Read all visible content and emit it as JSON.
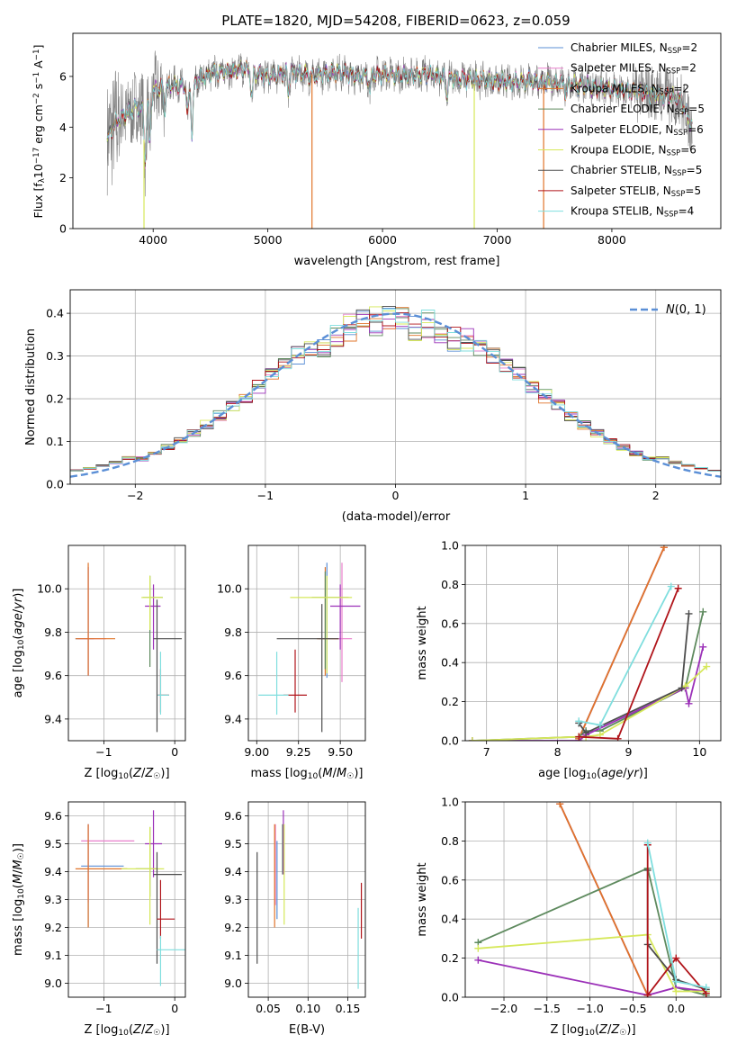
{
  "figure": {
    "title": "PLATE=1820, MJD=54208, FIBERID=0623, z=0.059"
  },
  "series_colors": {
    "Chabrier MILES": "#5b8fd6",
    "Salpeter MILES": "#e87ecb",
    "Kroupa MILES": "#e0742a",
    "Chabrier ELODIE": "#5e8a5e",
    "Salpeter ELODIE": "#9b30b8",
    "Kroupa ELODIE": "#d6e85a",
    "Chabrier STELIB": "#4d4d4d",
    "Salpeter STELIB": "#b0141a",
    "Kroupa STELIB": "#7fdede"
  },
  "chart_data": [
    {
      "id": "spectrum",
      "type": "line",
      "title": "PLATE=1820, MJD=54208, FIBERID=0623, z=0.059",
      "xlabel": "wavelength [Angstrom, rest frame]",
      "ylabel": "Flux [f_λ10^-17 erg cm^-2 s^-1 A^-1]",
      "xlim": [
        3300,
        8950
      ],
      "ylim": [
        0,
        7.7
      ],
      "xticks": [
        4000,
        5000,
        6000,
        7000,
        8000
      ],
      "yticks": [
        0,
        2,
        4,
        6
      ],
      "grid": false,
      "legend_position": "right",
      "legend": [
        {
          "name": "Chabrier MILES",
          "nssp": "2"
        },
        {
          "name": "Salpeter MILES",
          "nssp": "2"
        },
        {
          "name": "Kroupa MILES",
          "nssp": "2"
        },
        {
          "name": "Chabrier ELODIE",
          "nssp": "5"
        },
        {
          "name": "Salpeter ELODIE",
          "nssp": "6"
        },
        {
          "name": "Kroupa ELODIE",
          "nssp": "6"
        },
        {
          "name": "Chabrier STELIB",
          "nssp": "5"
        },
        {
          "name": "Salpeter STELIB",
          "nssp": "5"
        },
        {
          "name": "Kroupa STELIB",
          "nssp": "4"
        }
      ],
      "data_color": "#808080",
      "continuum": {
        "x": [
          3600,
          3650,
          3700,
          3750,
          3800,
          3850,
          3900,
          3950,
          4000,
          4100,
          4200,
          4300,
          4400,
          4500,
          4600,
          4700,
          4800,
          4900,
          5000,
          5200,
          5400,
          5600,
          5800,
          6000,
          6200,
          6400,
          6600,
          6800,
          7000,
          7200,
          7400,
          7600,
          7800,
          8000,
          8200,
          8400,
          8600,
          8700
        ],
        "y": [
          3.5,
          4.0,
          4.3,
          4.5,
          4.6,
          4.8,
          4.7,
          5.0,
          5.4,
          5.6,
          5.7,
          5.6,
          5.9,
          6.1,
          6.2,
          6.2,
          6.3,
          6.1,
          6.0,
          6.2,
          6.0,
          6.2,
          6.0,
          6.1,
          6.0,
          6.1,
          5.9,
          5.9,
          5.8,
          5.8,
          5.8,
          5.7,
          5.6,
          5.5,
          5.4,
          5.3,
          5.1,
          4.0
        ]
      },
      "dips": [
        {
          "x": 3930,
          "depth": 2.3
        },
        {
          "x": 3970,
          "depth": 1.8
        },
        {
          "x": 4100,
          "depth": 0.9
        },
        {
          "x": 4300,
          "depth": 1.2
        },
        {
          "x": 4340,
          "depth": 2.0
        },
        {
          "x": 4860,
          "depth": 1.0
        },
        {
          "x": 5180,
          "depth": 0.8
        },
        {
          "x": 5890,
          "depth": 0.6
        },
        {
          "x": 6560,
          "depth": 0.7
        },
        {
          "x": 7600,
          "depth": 0.4
        }
      ],
      "spikes": [
        {
          "x": 3920,
          "to": 0.0,
          "series": "Kroupa ELODIE"
        },
        {
          "x": 5385,
          "to": 0.0,
          "series": "Kroupa MILES"
        },
        {
          "x": 6800,
          "to": 0.0,
          "series": "Kroupa ELODIE"
        },
        {
          "x": 7405,
          "to": 0.0,
          "series": "Kroupa MILES"
        }
      ]
    },
    {
      "id": "residuals",
      "type": "histogram",
      "xlabel": "(data-model)/error",
      "ylabel": "Normed distribution",
      "xlim": [
        -2.5,
        2.5
      ],
      "ylim": [
        0,
        0.455
      ],
      "xticks": [
        -2,
        -1,
        0,
        1,
        2
      ],
      "yticks": [
        0.0,
        0.1,
        0.2,
        0.3,
        0.4
      ],
      "grid": true,
      "legend_position": "top-right",
      "legend_label": "N(0,1)",
      "bin_width": 0.1,
      "bin_start": -2.5,
      "reference_curve": "normal(0,1)",
      "reference_color": "#5b8fd6"
    },
    {
      "id": "age_vs_Z",
      "type": "errorbar",
      "xlabel": "Z [log10(Z/Z☉)]",
      "ylabel": "age [log10(age/yr)]",
      "xlim": [
        -1.5,
        0.15
      ],
      "ylim": [
        9.3,
        10.2
      ],
      "xticks": [
        -1,
        0
      ],
      "yticks": [
        9.4,
        9.6,
        9.8,
        10.0
      ],
      "grid": true,
      "points": [
        {
          "series": "Chabrier MILES",
          "x": -1.22,
          "xerr": [
            0.18,
            0.08
          ],
          "y": 9.77,
          "yerr": [
            0.17,
            0.33
          ]
        },
        {
          "series": "Salpeter MILES",
          "x": -1.22,
          "xerr": [
            0.15,
            0.25
          ],
          "y": 9.77,
          "yerr": [
            0.17,
            0.33
          ]
        },
        {
          "series": "Kroupa MILES",
          "x": -1.22,
          "xerr": [
            0.18,
            0.38
          ],
          "y": 9.77,
          "yerr": [
            0.17,
            0.35
          ]
        },
        {
          "series": "Chabrier ELODIE",
          "x": -0.35,
          "xerr": [
            0.1,
            0.18
          ],
          "y": 9.96,
          "yerr": [
            0.32,
            0.1
          ]
        },
        {
          "series": "Salpeter ELODIE",
          "x": -0.3,
          "xerr": [
            0.12,
            0.1
          ],
          "y": 9.92,
          "yerr": [
            0.2,
            0.1
          ]
        },
        {
          "series": "Kroupa ELODIE",
          "x": -0.35,
          "xerr": [
            0.12,
            0.18
          ],
          "y": 9.96,
          "yerr": [
            0.15,
            0.1
          ]
        },
        {
          "series": "Chabrier STELIB",
          "x": -0.25,
          "xerr": [
            0.05,
            0.35
          ],
          "y": 9.77,
          "yerr": [
            0.43,
            0.18
          ]
        },
        {
          "series": "Salpeter STELIB",
          "x": -0.2,
          "xerr": [
            0.04,
            0.12
          ],
          "y": 9.51,
          "yerr": [
            0.08,
            0.12
          ]
        },
        {
          "series": "Kroupa STELIB",
          "x": -0.2,
          "xerr": [
            0.04,
            0.12
          ],
          "y": 9.51,
          "yerr": [
            0.09,
            0.2
          ]
        }
      ]
    },
    {
      "id": "age_vs_mass",
      "type": "errorbar",
      "xlabel": "mass [log10(M/M☉)]",
      "ylabel": "",
      "xlim": [
        8.95,
        9.65
      ],
      "ylim": [
        9.3,
        10.2
      ],
      "xticks": [
        9.0,
        9.25,
        9.5
      ],
      "xtick_labels": [
        "9.00",
        "9.25",
        "9.50"
      ],
      "yticks": [
        9.4,
        9.6,
        9.8,
        10.0
      ],
      "grid": true,
      "points": [
        {
          "series": "Chabrier MILES",
          "x": 9.42,
          "xerr": [
            0.05,
            0.08
          ],
          "y": 9.77,
          "yerr": [
            0.18,
            0.35
          ]
        },
        {
          "series": "Salpeter MILES",
          "x": 9.51,
          "xerr": [
            0.06,
            0.06
          ],
          "y": 9.77,
          "yerr": [
            0.2,
            0.35
          ]
        },
        {
          "series": "Kroupa MILES",
          "x": 9.41,
          "xerr": [
            0.05,
            0.08
          ],
          "y": 9.77,
          "yerr": [
            0.17,
            0.33
          ]
        },
        {
          "series": "Chabrier ELODIE",
          "x": 9.41,
          "xerr": [
            0.08,
            0.14
          ],
          "y": 9.96,
          "yerr": [
            0.33,
            0.12
          ]
        },
        {
          "series": "Salpeter ELODIE",
          "x": 9.5,
          "xerr": [
            0.06,
            0.12
          ],
          "y": 9.92,
          "yerr": [
            0.2,
            0.1
          ]
        },
        {
          "series": "Kroupa ELODIE",
          "x": 9.42,
          "xerr": [
            0.22,
            0.15
          ],
          "y": 9.96,
          "yerr": [
            0.35,
            0.1
          ]
        },
        {
          "series": "Chabrier STELIB",
          "x": 9.39,
          "xerr": [
            0.27,
            0.1
          ],
          "y": 9.77,
          "yerr": [
            0.43,
            0.16
          ]
        },
        {
          "series": "Salpeter STELIB",
          "x": 9.23,
          "xerr": [
            0.07,
            0.07
          ],
          "y": 9.51,
          "yerr": [
            0.08,
            0.21
          ]
        },
        {
          "series": "Kroupa STELIB",
          "x": 9.12,
          "xerr": [
            0.11,
            0.07
          ],
          "y": 9.51,
          "yerr": [
            0.09,
            0.2
          ]
        }
      ]
    },
    {
      "id": "mass_weight_vs_age",
      "type": "line",
      "xlabel": "age [log10(age/yr)]",
      "ylabel": "mass weight",
      "xlim": [
        6.7,
        10.3
      ],
      "ylim": [
        0,
        1
      ],
      "xticks": [
        7,
        8,
        9,
        10
      ],
      "yticks": [
        0.0,
        0.2,
        0.4,
        0.6,
        0.8,
        1.0
      ],
      "grid": true,
      "series": [
        {
          "name": "Chabrier MILES",
          "x": [
            8.3,
            9.5
          ],
          "y": [
            0.01,
            0.99
          ]
        },
        {
          "name": "Salpeter MILES",
          "x": [
            8.3,
            9.5
          ],
          "y": [
            0.01,
            0.99
          ]
        },
        {
          "name": "Kroupa MILES",
          "x": [
            8.3,
            9.5
          ],
          "y": [
            0.01,
            0.99
          ]
        },
        {
          "name": "Chabrier ELODIE",
          "x": [
            6.8,
            8.3,
            8.4,
            8.6,
            9.8,
            10.05
          ],
          "y": [
            0.0,
            0.02,
            0.05,
            0.05,
            0.27,
            0.66
          ]
        },
        {
          "name": "Salpeter ELODIE",
          "x": [
            6.8,
            8.3,
            8.4,
            9.8,
            9.85,
            10.05
          ],
          "y": [
            0.0,
            0.0,
            0.03,
            0.27,
            0.19,
            0.48
          ]
        },
        {
          "name": "Kroupa ELODIE",
          "x": [
            6.8,
            8.3,
            8.4,
            8.6,
            9.8,
            10.1
          ],
          "y": [
            0.0,
            0.02,
            0.02,
            0.03,
            0.28,
            0.38
          ]
        },
        {
          "name": "Chabrier STELIB",
          "x": [
            8.3,
            8.4,
            9.75,
            9.85
          ],
          "y": [
            0.09,
            0.04,
            0.27,
            0.65
          ]
        },
        {
          "name": "Salpeter STELIB",
          "x": [
            8.3,
            8.85,
            9.7
          ],
          "y": [
            0.02,
            0.01,
            0.78
          ]
        },
        {
          "name": "Kroupa STELIB",
          "x": [
            8.3,
            8.6,
            9.6
          ],
          "y": [
            0.1,
            0.08,
            0.79
          ]
        }
      ]
    },
    {
      "id": "mass_vs_Z",
      "type": "errorbar",
      "xlabel": "Z [log10(Z/Z☉)]",
      "ylabel": "mass [log10(M/M☉)]",
      "xlim": [
        -1.5,
        0.15
      ],
      "ylim": [
        8.95,
        9.65
      ],
      "xticks": [
        -1,
        0
      ],
      "yticks": [
        9.0,
        9.1,
        9.2,
        9.3,
        9.4,
        9.5,
        9.6
      ],
      "grid": true,
      "points": [
        {
          "series": "Chabrier MILES",
          "x": -1.22,
          "xerr": [
            0.1,
            0.5
          ],
          "y": 9.42,
          "yerr": [
            0.22,
            0.15
          ]
        },
        {
          "series": "Salpeter MILES",
          "x": -1.22,
          "xerr": [
            0.1,
            0.65
          ],
          "y": 9.51,
          "yerr": [
            0.22,
            0.06
          ]
        },
        {
          "series": "Kroupa MILES",
          "x": -1.22,
          "xerr": [
            0.18,
            0.55
          ],
          "y": 9.41,
          "yerr": [
            0.21,
            0.16
          ]
        },
        {
          "series": "Chabrier ELODIE",
          "x": -0.35,
          "xerr": [
            0.2,
            0.1
          ],
          "y": 9.41,
          "yerr": [
            0.1,
            0.15
          ]
        },
        {
          "series": "Salpeter ELODIE",
          "x": -0.3,
          "xerr": [
            0.12,
            0.12
          ],
          "y": 9.5,
          "yerr": [
            0.12,
            0.12
          ]
        },
        {
          "series": "Kroupa ELODIE",
          "x": -0.35,
          "xerr": [
            0.4,
            0.2
          ],
          "y": 9.41,
          "yerr": [
            0.2,
            0.15
          ]
        },
        {
          "series": "Chabrier STELIB",
          "x": -0.25,
          "xerr": [
            0.05,
            0.35
          ],
          "y": 9.39,
          "yerr": [
            0.32,
            0.08
          ]
        },
        {
          "series": "Salpeter STELIB",
          "x": -0.2,
          "xerr": [
            0.05,
            0.2
          ],
          "y": 9.23,
          "yerr": [
            0.07,
            0.14
          ]
        },
        {
          "series": "Kroupa STELIB",
          "x": -0.2,
          "xerr": [
            0.05,
            0.35
          ],
          "y": 9.12,
          "yerr": [
            0.13,
            0.05
          ]
        }
      ]
    },
    {
      "id": "mass_vs_ebv",
      "type": "errorbar",
      "xlabel": "E(B-V)",
      "ylabel": "",
      "xlim": [
        0.025,
        0.172
      ],
      "ylim": [
        8.95,
        9.65
      ],
      "xticks": [
        0.05,
        0.1,
        0.15
      ],
      "xtick_labels": [
        "0.05",
        "0.10",
        "0.15"
      ],
      "yticks": [
        9.0,
        9.1,
        9.2,
        9.3,
        9.4,
        9.5,
        9.6
      ],
      "grid": true,
      "points": [
        {
          "series": "Chabrier MILES",
          "x": 0.061,
          "y": 9.43,
          "yerr": [
            0.2,
            0.08
          ]
        },
        {
          "series": "Salpeter MILES",
          "x": 0.059,
          "y": 9.5,
          "yerr": [
            0.22,
            0.07
          ]
        },
        {
          "series": "Kroupa MILES",
          "x": 0.058,
          "y": 9.39,
          "yerr": [
            0.19,
            0.18
          ]
        },
        {
          "series": "Chabrier ELODIE",
          "x": 0.068,
          "y": 9.47,
          "yerr": [
            0.08,
            0.1
          ]
        },
        {
          "series": "Salpeter ELODIE",
          "x": 0.069,
          "y": 9.51,
          "yerr": [
            0.12,
            0.11
          ]
        },
        {
          "series": "Kroupa ELODIE",
          "x": 0.07,
          "y": 9.4,
          "yerr": [
            0.19,
            0.17
          ]
        },
        {
          "series": "Chabrier STELIB",
          "x": 0.036,
          "y": 9.27,
          "yerr": [
            0.2,
            0.2
          ]
        },
        {
          "series": "Salpeter STELIB",
          "x": 0.167,
          "y": 9.26,
          "yerr": [
            0.1,
            0.1
          ]
        },
        {
          "series": "Kroupa STELIB",
          "x": 0.163,
          "y": 9.1,
          "yerr": [
            0.12,
            0.17
          ]
        }
      ]
    },
    {
      "id": "mass_weight_vs_Z",
      "type": "line",
      "xlabel": "Z [log10(Z/Z☉)]",
      "ylabel": "mass weight",
      "xlim": [
        -2.45,
        0.52
      ],
      "ylim": [
        0,
        1
      ],
      "xticks": [
        -2.0,
        -1.5,
        -1.0,
        -0.5,
        0.0
      ],
      "yticks": [
        0.0,
        0.2,
        0.4,
        0.6,
        0.8,
        1.0
      ],
      "grid": true,
      "series": [
        {
          "name": "Chabrier MILES",
          "x": [
            -1.35,
            -0.33
          ],
          "y": [
            0.99,
            0.01
          ]
        },
        {
          "name": "Salpeter MILES",
          "x": [
            -1.35,
            -0.33
          ],
          "y": [
            0.99,
            0.01
          ]
        },
        {
          "name": "Kroupa MILES",
          "x": [
            -1.35,
            -0.33
          ],
          "y": [
            0.99,
            0.01
          ]
        },
        {
          "name": "Chabrier ELODIE",
          "x": [
            -2.3,
            -0.33,
            0.0,
            0.35
          ],
          "y": [
            0.28,
            0.66,
            0.05,
            0.01
          ]
        },
        {
          "name": "Salpeter ELODIE",
          "x": [
            -2.3,
            -0.33,
            0.0,
            0.35
          ],
          "y": [
            0.19,
            0.01,
            0.05,
            0.03
          ]
        },
        {
          "name": "Kroupa ELODIE",
          "x": [
            -2.3,
            -0.33,
            0.0,
            0.35
          ],
          "y": [
            0.25,
            0.32,
            0.03,
            0.03
          ]
        },
        {
          "name": "Chabrier STELIB",
          "x": [
            -0.33,
            -0.33,
            0.0,
            0.35
          ],
          "y": [
            0.65,
            0.27,
            0.09,
            0.04
          ]
        },
        {
          "name": "Salpeter STELIB",
          "x": [
            -0.33,
            -0.33,
            0.0,
            0.35
          ],
          "y": [
            0.78,
            0.01,
            0.2,
            0.02
          ]
        },
        {
          "name": "Kroupa STELIB",
          "x": [
            -0.33,
            0.0,
            0.35
          ],
          "y": [
            0.79,
            0.08,
            0.05
          ]
        }
      ]
    }
  ]
}
